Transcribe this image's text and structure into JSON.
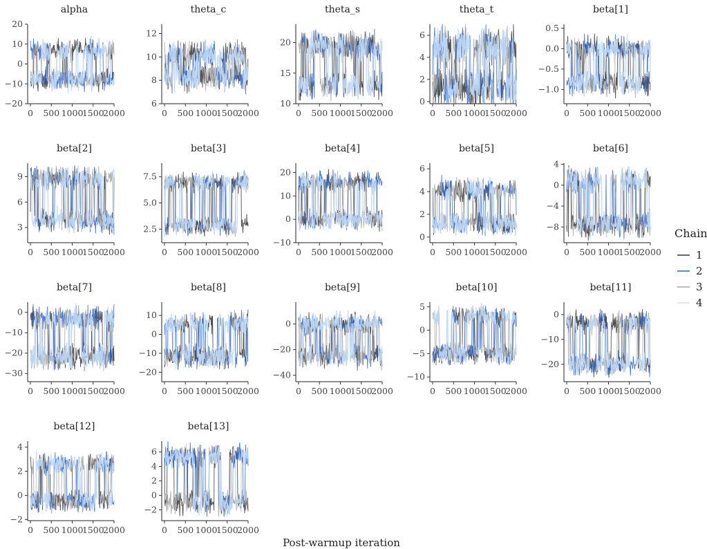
{
  "chart_data": {
    "type": "line",
    "facet_layout": {
      "columns": 5
    },
    "xlabel": "Post-warmup iteration",
    "x_ticks": [
      0,
      500,
      1000,
      1500,
      2000
    ],
    "x_tick_labels": [
      "0",
      "500",
      "1000",
      "1500",
      "2000"
    ],
    "xlim": [
      0,
      2000
    ],
    "legend": {
      "title": "Chain",
      "placement": "right",
      "entries": [
        {
          "label": "1",
          "color": "#333333"
        },
        {
          "label": "2",
          "color": "#2d64c8"
        },
        {
          "label": "3",
          "color": "#a3a3a3"
        },
        {
          "label": "4",
          "color": "#cfe2f8"
        }
      ]
    },
    "series_colors": [
      "#333333",
      "#2d64c8",
      "#a3a3a3",
      "#bcd8f7"
    ],
    "panels": [
      {
        "title": "alpha",
        "yticks": [
          20,
          10,
          0,
          -10,
          -20
        ],
        "ylim": [
          -20,
          20
        ],
        "modes": [
          7,
          -8
        ],
        "spread": 3.5
      },
      {
        "title": "theta_c",
        "yticks": [
          12,
          10,
          8,
          6
        ],
        "ylim": [
          6,
          12.8
        ],
        "modes": [
          10.2,
          8.3
        ],
        "spread": 0.8
      },
      {
        "title": "theta_s",
        "yticks": [
          20,
          15,
          10
        ],
        "ylim": [
          10,
          23
        ],
        "modes": [
          19.5,
          13
        ],
        "spread": 1.5
      },
      {
        "title": "theta_t",
        "yticks": [
          6,
          4,
          2,
          0
        ],
        "ylim": [
          -0.2,
          7
        ],
        "modes": [
          5,
          1.2
        ],
        "spread": 1.2
      },
      {
        "title": "beta[1]",
        "yticks": [
          0.5,
          0.0,
          -0.5,
          -1.0
        ],
        "ylim": [
          -1.35,
          0.6
        ],
        "modes": [
          0.0,
          -0.85
        ],
        "spread": 0.2
      },
      {
        "title": "beta[2]",
        "yticks": [
          9,
          6,
          3
        ],
        "ylim": [
          1.2,
          10.6
        ],
        "modes": [
          8.8,
          3.8
        ],
        "spread": 0.9
      },
      {
        "title": "beta[3]",
        "yticks": [
          7.5,
          5.0,
          2.5
        ],
        "ylim": [
          1.2,
          8.8
        ],
        "modes": [
          7,
          2.8
        ],
        "spread": 0.6
      },
      {
        "title": "beta[4]",
        "yticks": [
          20,
          10,
          0,
          -10
        ],
        "ylim": [
          -10,
          24
        ],
        "modes": [
          16,
          0
        ],
        "spread": 3
      },
      {
        "title": "beta[5]",
        "yticks": [
          6,
          4,
          2,
          0
        ],
        "ylim": [
          -0.5,
          6.5
        ],
        "modes": [
          4.2,
          1.2
        ],
        "spread": 0.7
      },
      {
        "title": "beta[6]",
        "yticks": [
          4,
          0,
          -4,
          -8
        ],
        "ylim": [
          -11,
          4.2
        ],
        "modes": [
          1,
          -7.5
        ],
        "spread": 1.6
      },
      {
        "title": "beta[7]",
        "yticks": [
          0,
          -10,
          -20,
          -30
        ],
        "ylim": [
          -34,
          5
        ],
        "modes": [
          -3,
          -22
        ],
        "spread": 4
      },
      {
        "title": "beta[8]",
        "yticks": [
          10,
          0,
          -10,
          -20
        ],
        "ylim": [
          -25,
          17
        ],
        "modes": [
          6,
          -12
        ],
        "spread": 4
      },
      {
        "title": "beta[9]",
        "yticks": [
          0,
          -20,
          -40
        ],
        "ylim": [
          -45,
          17
        ],
        "modes": [
          0,
          -25
        ],
        "spread": 6
      },
      {
        "title": "beta[10]",
        "yticks": [
          5,
          0,
          -5,
          -10
        ],
        "ylim": [
          -11,
          6
        ],
        "modes": [
          3,
          -5
        ],
        "spread": 1.5
      },
      {
        "title": "beta[11]",
        "yticks": [
          0,
          -10,
          -20
        ],
        "ylim": [
          -27,
          5
        ],
        "modes": [
          -3,
          -20
        ],
        "spread": 3
      },
      {
        "title": "beta[12]",
        "yticks": [
          4,
          2,
          0,
          -2
        ],
        "ylim": [
          -2.1,
          4.5
        ],
        "modes": [
          2.6,
          -0.5
        ],
        "spread": 0.6
      },
      {
        "title": "beta[13]",
        "yticks": [
          6,
          4,
          2,
          0,
          -2
        ],
        "ylim": [
          -3.5,
          7.5
        ],
        "modes": [
          5.5,
          -1
        ],
        "spread": 1.1
      }
    ]
  }
}
